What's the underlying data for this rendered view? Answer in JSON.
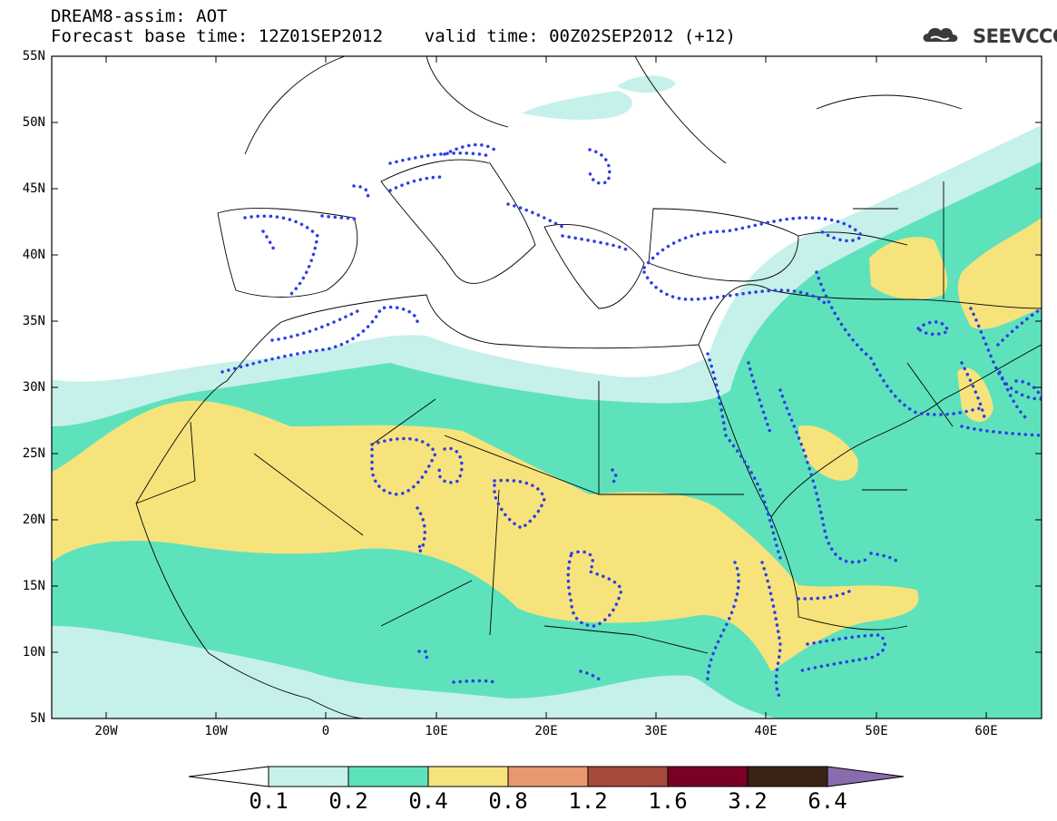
{
  "title": {
    "line1": "DREAM8-assim: AOT",
    "line2": "Forecast base time: 12Z01SEP2012    valid time: 00Z02SEP2012 (+12)"
  },
  "logo": {
    "text": "SEEVCCC",
    "icon": "cloud-logo-icon"
  },
  "map": {
    "latitude_ticks": [
      "55N",
      "50N",
      "45N",
      "40N",
      "35N",
      "30N",
      "25N",
      "20N",
      "15N",
      "10N",
      "5N"
    ],
    "longitude_ticks": [
      "20W",
      "10W",
      "0",
      "10E",
      "20E",
      "30E",
      "40E",
      "50E",
      "60E"
    ],
    "extent": {
      "lon": [
        -25,
        65
      ],
      "lat": [
        5,
        55
      ]
    }
  },
  "colorbar": {
    "levels": [
      "0.1",
      "0.2",
      "0.4",
      "0.8",
      "1.2",
      "1.6",
      "3.2",
      "6.4"
    ],
    "colors": [
      "#ffffff",
      "#c6f0ea",
      "#5ee2bc",
      "#f6e37c",
      "#e89870",
      "#a64a3c",
      "#7a0024",
      "#3a2314",
      "#8a6cae"
    ]
  }
}
